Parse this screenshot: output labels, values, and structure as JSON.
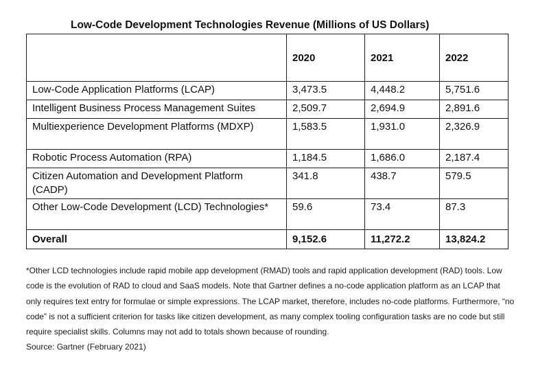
{
  "title": "Low-Code Development Technologies Revenue (Millions of US Dollars)",
  "table": {
    "years": [
      "2020",
      "2021",
      "2022"
    ],
    "rows": [
      {
        "label": "Low-Code Application Platforms (LCAP)",
        "values": [
          "3,473.5",
          "4,448.2",
          "5,751.6"
        ]
      },
      {
        "label": "Intelligent Business Process Management Suites",
        "values": [
          "2,509.7",
          "2,694.9",
          "2,891.6"
        ]
      },
      {
        "label": "Multiexperience Development Platforms (MDXP)",
        "values": [
          "1,583.5",
          "1,931.0",
          "2,326.9"
        ]
      },
      {
        "label": "Robotic Process Automation (RPA)",
        "values": [
          "1,184.5",
          "1,686.0",
          "2,187.4"
        ]
      },
      {
        "label": "Citizen Automation and Development Platform (CADP)",
        "values": [
          "341.8",
          "438.7",
          "579.5"
        ]
      },
      {
        "label": "Other Low-Code Development (LCD) Technologies*",
        "values": [
          "59.6",
          "73.4",
          "87.3"
        ]
      }
    ],
    "total": {
      "label": "Overall",
      "values": [
        "9,152.6",
        "11,272.2",
        "13,824.2"
      ]
    }
  },
  "footnote": "*Other LCD technologies include rapid mobile app development (RMAD) tools and rapid application development (RAD) tools. Low code is the evolution of RAD to cloud and SaaS models. Note that Gartner defines a no-code application platform as an LCAP that only requires text entry for formulae or simple expressions. The LCAP market, therefore, includes no-code platforms. Furthermore, “no code” is not a sufficient criterion for tasks like citizen development, as many complex tooling configuration tasks are no code but still require specialist skills. Columns may not add to totals shown because of rounding.",
  "source": "Source: Gartner (February 2021)"
}
